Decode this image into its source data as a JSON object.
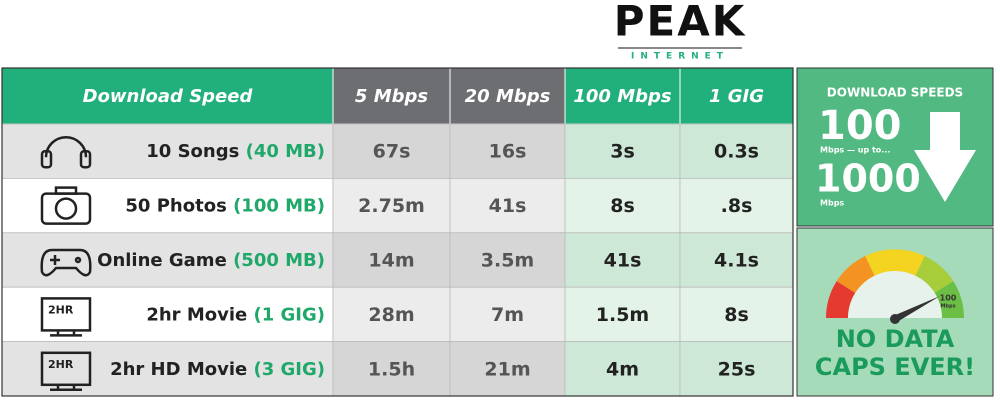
{
  "logo": {
    "name": "PEAK",
    "tagline": "INTERNET"
  },
  "table": {
    "header": [
      "Download Speed",
      "5 Mbps",
      "20 Mbps",
      "100 Mbps",
      "1 GIG"
    ],
    "rows": [
      {
        "label": "10 Songs",
        "size": "(40 MB)",
        "times": [
          "67s",
          "16s",
          "3s",
          "0.3s"
        ]
      },
      {
        "label": "50 Photos",
        "size": "(100 MB)",
        "times": [
          "2.75m",
          "41s",
          "8s",
          ".8s"
        ]
      },
      {
        "label": "Online Game",
        "size": "(500 MB)",
        "times": [
          "14m",
          "3.5m",
          "41s",
          "4.1s"
        ]
      },
      {
        "label": "2hr Movie",
        "size": "(1 GIG)",
        "icon_text": "2HR",
        "times": [
          "28m",
          "7m",
          "1.5m",
          "8s"
        ]
      },
      {
        "label": "2hr HD Movie",
        "size": "(3 GIG)",
        "icon_text": "2HR",
        "times": [
          "1.5h",
          "21m",
          "4m",
          "25s"
        ]
      }
    ]
  },
  "panel": {
    "title": "DOWNLOAD SPEEDS",
    "from": "100",
    "from_unit": "Mbps — up to...",
    "to": "1000",
    "to_unit": "Mbps",
    "gauge_value": "100",
    "gauge_unit": "Mbps",
    "slogan": [
      "NO DATA",
      "CAPS EVER!"
    ]
  }
}
